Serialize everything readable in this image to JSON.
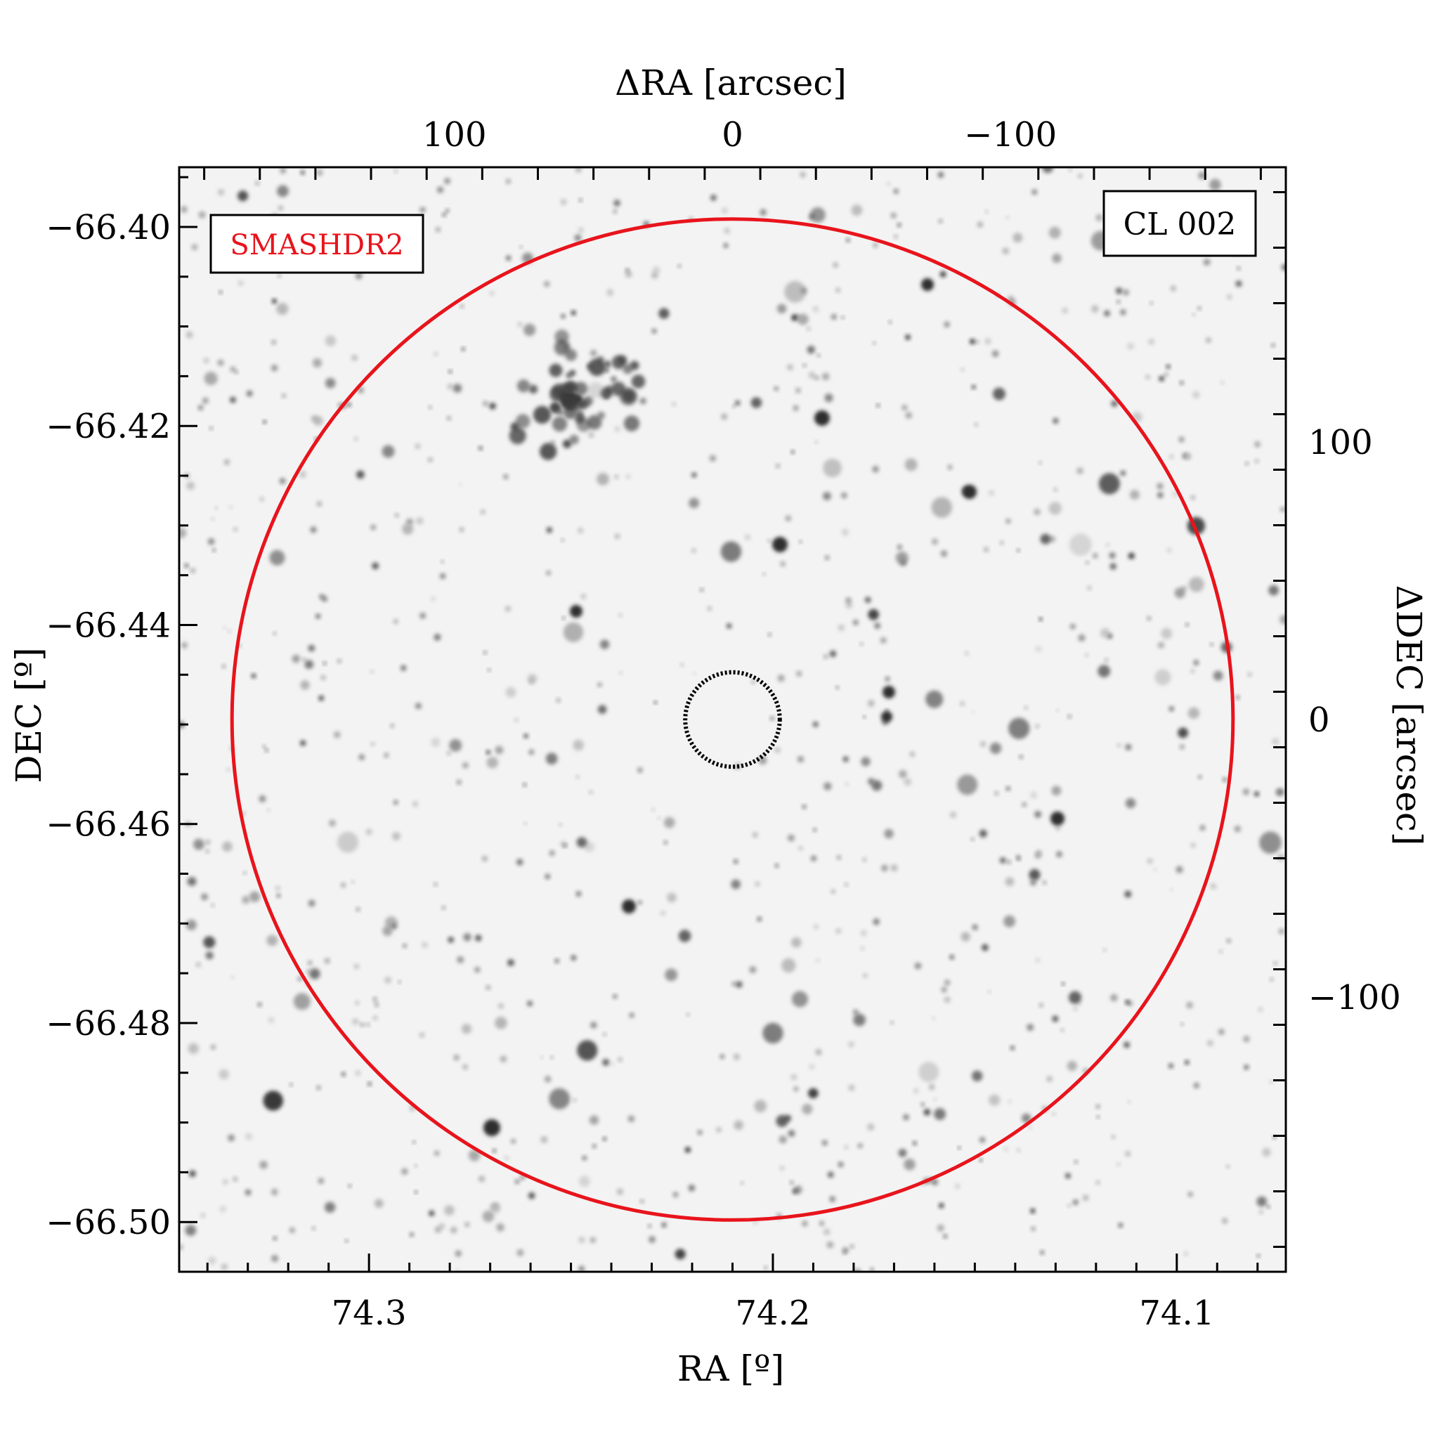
{
  "chart_data": {
    "type": "scatter",
    "description_labels": {
      "survey_label": "SMASHDR2",
      "cluster_label": "CL 002"
    },
    "axes": {
      "bottom": {
        "label": "RA [º]",
        "ticks": [
          "74.3",
          "74.2",
          "74.1"
        ],
        "tick_values": [
          74.3,
          74.2,
          74.1
        ],
        "range": [
          74.347,
          74.073
        ]
      },
      "left": {
        "label": "DEC [º]",
        "ticks": [
          "−66.40",
          "−66.42",
          "−66.44",
          "−66.46",
          "−66.48",
          "−66.50"
        ],
        "tick_values": [
          -66.4,
          -66.42,
          -66.44,
          -66.46,
          -66.48,
          -66.5
        ],
        "range": [
          -66.505,
          -66.394
        ]
      },
      "top": {
        "label": "ΔRA [arcsec]",
        "ticks": [
          "100",
          "0",
          "−100"
        ],
        "tick_values": [
          100,
          0,
          -100
        ],
        "range": [
          199,
          -199
        ]
      },
      "right": {
        "label": "ΔDEC [arcsec]",
        "ticks": [
          "100",
          "0",
          "−100"
        ],
        "tick_values": [
          100,
          0,
          -100
        ],
        "range": [
          -199,
          199
        ]
      }
    },
    "circles": [
      {
        "name": "outer",
        "center_arcsec": [
          0,
          0
        ],
        "radius_arcsec": 180,
        "color": "#e8141c"
      },
      {
        "name": "inner",
        "center_arcsec": [
          0,
          0
        ],
        "radius_arcsec": 17,
        "color": "#000000"
      }
    ],
    "grid": false,
    "background": "greyscale sky image"
  },
  "colors": {
    "survey_label": "#e8141c",
    "outer_circle": "#e8141c",
    "inner_circle": "#000000"
  }
}
